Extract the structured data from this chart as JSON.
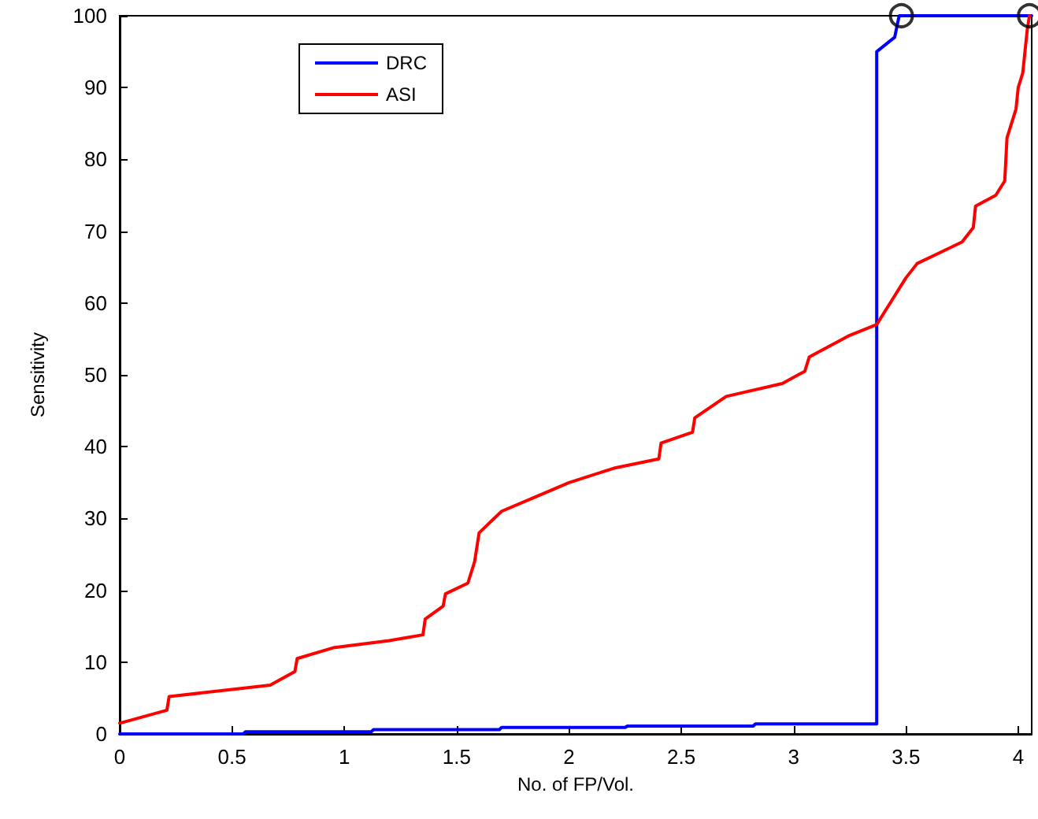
{
  "chart_data": {
    "type": "line",
    "xlabel": "No. of FP/Vol.",
    "ylabel": "Sensitivity",
    "xlim": [
      0,
      4.06
    ],
    "ylim": [
      0,
      100
    ],
    "xticks": [
      0,
      0.5,
      1,
      1.5,
      2,
      2.5,
      3,
      3.5,
      4
    ],
    "yticks": [
      0,
      10,
      20,
      30,
      40,
      50,
      60,
      70,
      80,
      90,
      100
    ],
    "grid": false,
    "legend": "top left",
    "marker": "none",
    "line_style": "solid",
    "series": [
      {
        "name": "DRC",
        "color": "#0000ff",
        "x": [
          0,
          0.55,
          0.56,
          1.12,
          1.13,
          1.69,
          1.7,
          2.25,
          2.26,
          2.82,
          2.83,
          3.37,
          3.37,
          3.43,
          3.45,
          3.47,
          4.06
        ],
        "values": [
          0,
          0,
          0.3,
          0.3,
          0.6,
          0.6,
          0.9,
          0.9,
          1.1,
          1.1,
          1.4,
          1.4,
          95,
          96.5,
          97,
          100,
          100
        ]
      },
      {
        "name": "ASI",
        "color": "#ff0000",
        "x": [
          0,
          0.21,
          0.22,
          0.5,
          0.67,
          0.78,
          0.79,
          0.95,
          1.2,
          1.35,
          1.36,
          1.44,
          1.45,
          1.55,
          1.58,
          1.6,
          1.7,
          1.85,
          2.0,
          2.2,
          2.4,
          2.41,
          2.55,
          2.56,
          2.7,
          2.95,
          3.05,
          3.07,
          3.25,
          3.37,
          3.43,
          3.5,
          3.55,
          3.65,
          3.75,
          3.8,
          3.81,
          3.9,
          3.94,
          3.95,
          3.99,
          4.0,
          4.02,
          4.04,
          4.05
        ],
        "values": [
          1.5,
          3.3,
          5.2,
          6.2,
          6.8,
          8.7,
          10.5,
          12,
          13,
          13.8,
          16,
          17.8,
          19.5,
          21,
          24,
          28,
          31,
          33,
          35,
          37,
          38.3,
          40.5,
          42,
          44,
          47,
          48.8,
          50.5,
          52.5,
          55.5,
          57,
          60,
          63.5,
          65.5,
          67,
          68.5,
          70.5,
          73.5,
          75,
          77,
          83,
          87,
          90,
          92,
          98,
          100
        ]
      },
      {
        "type": "scatter",
        "marker": "circle",
        "color": "#000000",
        "x": [
          3.48,
          4.05
        ],
        "values": [
          100,
          100
        ]
      }
    ]
  }
}
